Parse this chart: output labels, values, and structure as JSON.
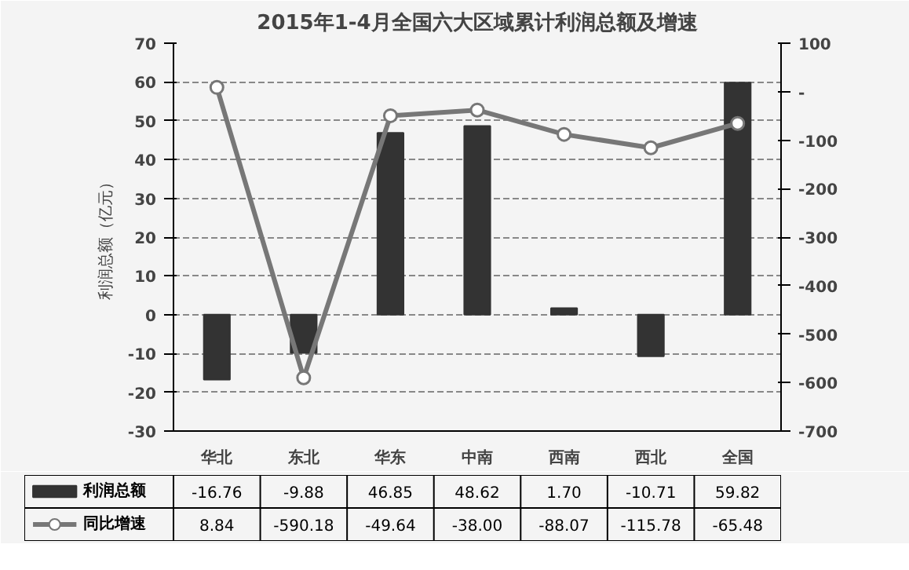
{
  "chart_data": {
    "type": "bar",
    "title": "2015年1-4月全国六大区域累计利润总额及增速",
    "ylabel": "利润总额（亿元）",
    "categories": [
      "华北",
      "东北",
      "华东",
      "中南",
      "西南",
      "西北",
      "全国"
    ],
    "series": [
      {
        "name": "利润总额",
        "color": "#333333",
        "values": [
          -16.76,
          -9.88,
          46.85,
          48.62,
          1.7,
          -10.71,
          59.82
        ],
        "value_labels": [
          "-16.76",
          "-9.88",
          "46.85",
          "48.62",
          "1.70",
          "-10.71",
          "59.82"
        ]
      },
      {
        "name": "同比增速",
        "type": "line",
        "axis": "y2",
        "color": "#777777",
        "marker": "circle",
        "values": [
          8.84,
          -590.18,
          -49.64,
          -38.0,
          -88.07,
          -115.78,
          -65.48
        ],
        "value_labels": [
          "8.84",
          "-590.18",
          "-49.64",
          "-38.00",
          "-88.07",
          "-115.78",
          "-65.48"
        ]
      }
    ],
    "ylim": [
      -30,
      70
    ],
    "yticks": [
      -30,
      -20,
      -10,
      0,
      10,
      20,
      30,
      40,
      50,
      60,
      70
    ],
    "y2lim": [
      -700,
      100
    ],
    "y2ticks": [
      -700,
      -600,
      -500,
      -400,
      -300,
      -200,
      -100,
      {
        "value": 0,
        "label": "-"
      },
      100
    ],
    "grid": "y",
    "legend": "bottom"
  }
}
